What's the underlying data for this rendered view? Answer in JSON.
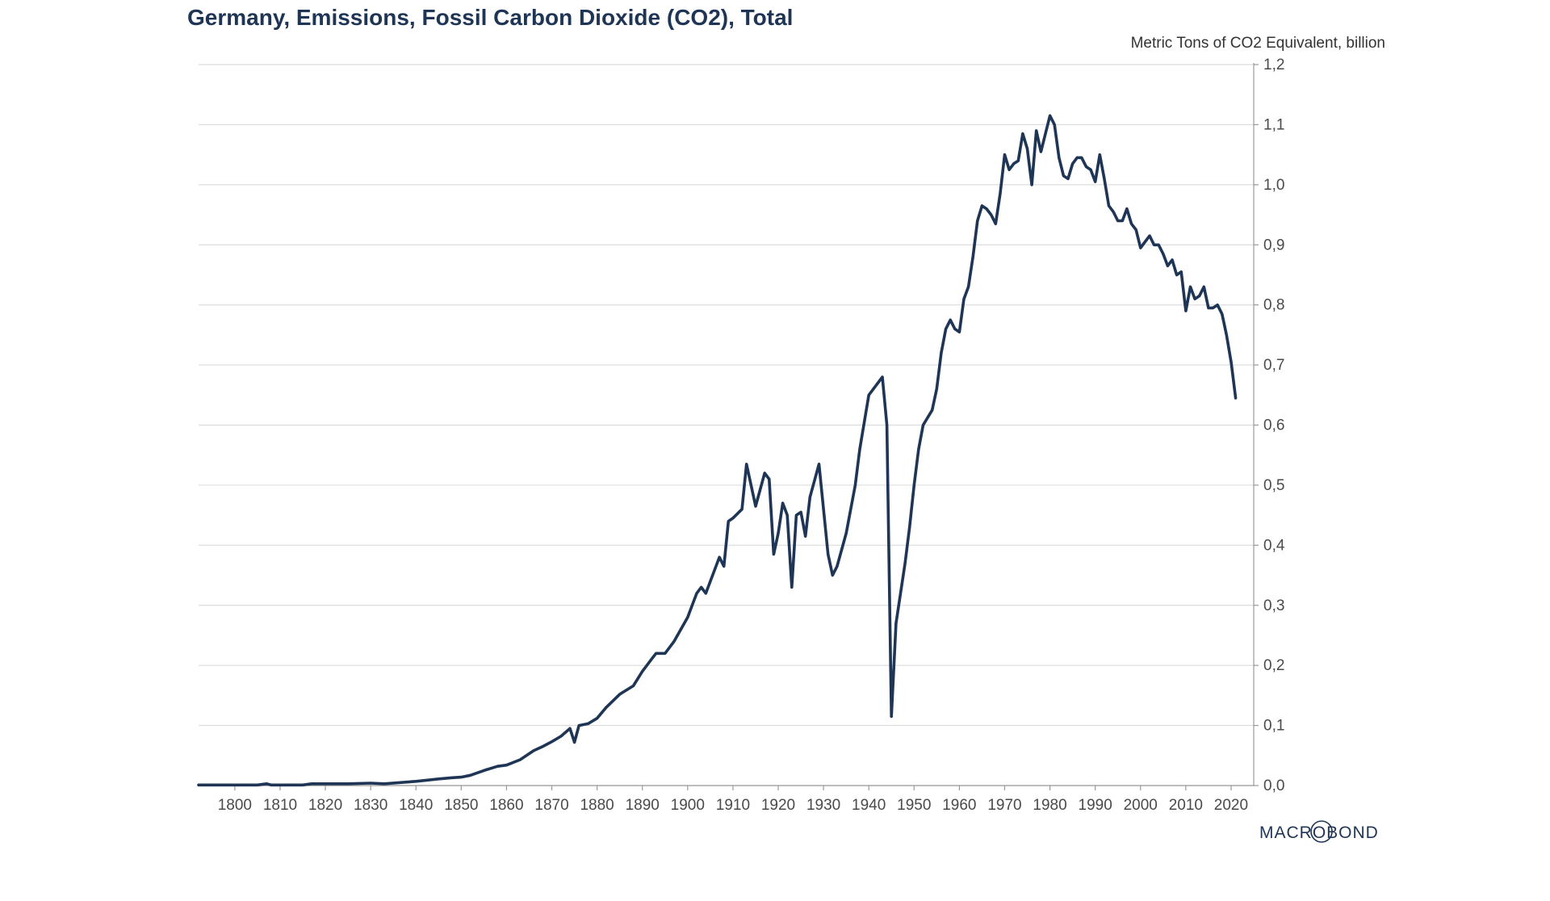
{
  "title": "Germany, Emissions, Fossil Carbon Dioxide (CO2), Total",
  "logo": {
    "text": "MACROBOND"
  },
  "colors": {
    "line": "#1f3556",
    "grid": "#dcdcdc",
    "axis": "#999999",
    "title": "#1f3556",
    "text": "#4a4a4a"
  },
  "chart_data": {
    "type": "line",
    "title": "Germany, Emissions, Fossil Carbon Dioxide (CO2), Total",
    "xlabel": "",
    "ylabel": "Metric Tons of CO2 Equivalent, billion",
    "xlim": [
      1792,
      2025
    ],
    "ylim": [
      0,
      1.2
    ],
    "y_axis_side": "right",
    "grid": "horizontal",
    "legend": "none",
    "x_ticks": [
      1800,
      1810,
      1820,
      1830,
      1840,
      1850,
      1860,
      1870,
      1880,
      1890,
      1900,
      1910,
      1920,
      1930,
      1940,
      1950,
      1960,
      1970,
      1980,
      1990,
      2000,
      2010,
      2020
    ],
    "y_ticks": [
      0,
      0.1,
      0.2,
      0.3,
      0.4,
      0.5,
      0.6,
      0.7,
      0.8,
      0.9,
      1.0,
      1.1,
      1.2
    ],
    "y_tick_labels": [
      "0,0",
      "0,1",
      "0,2",
      "0,3",
      "0,4",
      "0,5",
      "0,6",
      "0,7",
      "0,8",
      "0,9",
      "1,0",
      "1,1",
      "1,2"
    ],
    "series": [
      {
        "points": [
          [
            1792,
            0.001
          ],
          [
            1800,
            0.001
          ],
          [
            1805,
            0.001
          ],
          [
            1807,
            0.003
          ],
          [
            1808,
            0.001
          ],
          [
            1815,
            0.001
          ],
          [
            1817,
            0.003
          ],
          [
            1820,
            0.003
          ],
          [
            1825,
            0.003
          ],
          [
            1830,
            0.004
          ],
          [
            1833,
            0.003
          ],
          [
            1840,
            0.007
          ],
          [
            1845,
            0.011
          ],
          [
            1848,
            0.013
          ],
          [
            1850,
            0.014
          ],
          [
            1852,
            0.017
          ],
          [
            1855,
            0.025
          ],
          [
            1858,
            0.032
          ],
          [
            1860,
            0.034
          ],
          [
            1863,
            0.043
          ],
          [
            1866,
            0.058
          ],
          [
            1868,
            0.065
          ],
          [
            1870,
            0.073
          ],
          [
            1872,
            0.082
          ],
          [
            1874,
            0.095
          ],
          [
            1875,
            0.072
          ],
          [
            1876,
            0.1
          ],
          [
            1878,
            0.103
          ],
          [
            1880,
            0.112
          ],
          [
            1882,
            0.13
          ],
          [
            1885,
            0.152
          ],
          [
            1888,
            0.166
          ],
          [
            1890,
            0.19
          ],
          [
            1892,
            0.21
          ],
          [
            1893,
            0.22
          ],
          [
            1895,
            0.22
          ],
          [
            1897,
            0.24
          ],
          [
            1900,
            0.28
          ],
          [
            1902,
            0.32
          ],
          [
            1903,
            0.33
          ],
          [
            1904,
            0.32
          ],
          [
            1905,
            0.34
          ],
          [
            1906,
            0.36
          ],
          [
            1907,
            0.38
          ],
          [
            1908,
            0.365
          ],
          [
            1909,
            0.44
          ],
          [
            1910,
            0.445
          ],
          [
            1912,
            0.46
          ],
          [
            1913,
            0.535
          ],
          [
            1915,
            0.465
          ],
          [
            1917,
            0.52
          ],
          [
            1918,
            0.51
          ],
          [
            1919,
            0.385
          ],
          [
            1920,
            0.42
          ],
          [
            1921,
            0.47
          ],
          [
            1922,
            0.45
          ],
          [
            1923,
            0.33
          ],
          [
            1924,
            0.45
          ],
          [
            1925,
            0.455
          ],
          [
            1926,
            0.415
          ],
          [
            1927,
            0.48
          ],
          [
            1929,
            0.535
          ],
          [
            1931,
            0.385
          ],
          [
            1932,
            0.35
          ],
          [
            1933,
            0.365
          ],
          [
            1935,
            0.42
          ],
          [
            1937,
            0.5
          ],
          [
            1938,
            0.56
          ],
          [
            1940,
            0.65
          ],
          [
            1942,
            0.67
          ],
          [
            1943,
            0.68
          ],
          [
            1944,
            0.6
          ],
          [
            1945,
            0.115
          ],
          [
            1946,
            0.27
          ],
          [
            1947,
            0.32
          ],
          [
            1948,
            0.37
          ],
          [
            1949,
            0.43
          ],
          [
            1950,
            0.5
          ],
          [
            1951,
            0.56
          ],
          [
            1952,
            0.6
          ],
          [
            1954,
            0.625
          ],
          [
            1955,
            0.66
          ],
          [
            1956,
            0.72
          ],
          [
            1957,
            0.76
          ],
          [
            1958,
            0.775
          ],
          [
            1959,
            0.76
          ],
          [
            1960,
            0.755
          ],
          [
            1961,
            0.81
          ],
          [
            1962,
            0.83
          ],
          [
            1963,
            0.88
          ],
          [
            1964,
            0.94
          ],
          [
            1965,
            0.965
          ],
          [
            1966,
            0.96
          ],
          [
            1967,
            0.95
          ],
          [
            1968,
            0.935
          ],
          [
            1969,
            0.985
          ],
          [
            1970,
            1.05
          ],
          [
            1971,
            1.025
          ],
          [
            1972,
            1.035
          ],
          [
            1973,
            1.04
          ],
          [
            1974,
            1.085
          ],
          [
            1975,
            1.06
          ],
          [
            1976,
            1.0
          ],
          [
            1977,
            1.09
          ],
          [
            1978,
            1.055
          ],
          [
            1979,
            1.085
          ],
          [
            1980,
            1.115
          ],
          [
            1981,
            1.1
          ],
          [
            1982,
            1.045
          ],
          [
            1983,
            1.015
          ],
          [
            1984,
            1.01
          ],
          [
            1985,
            1.035
          ],
          [
            1986,
            1.045
          ],
          [
            1987,
            1.045
          ],
          [
            1988,
            1.03
          ],
          [
            1989,
            1.025
          ],
          [
            1990,
            1.005
          ],
          [
            1991,
            1.05
          ],
          [
            1992,
            1.01
          ],
          [
            1993,
            0.965
          ],
          [
            1994,
            0.955
          ],
          [
            1995,
            0.94
          ],
          [
            1996,
            0.94
          ],
          [
            1997,
            0.96
          ],
          [
            1998,
            0.935
          ],
          [
            1999,
            0.925
          ],
          [
            2000,
            0.895
          ],
          [
            2001,
            0.905
          ],
          [
            2002,
            0.915
          ],
          [
            2003,
            0.9
          ],
          [
            2004,
            0.9
          ],
          [
            2005,
            0.885
          ],
          [
            2006,
            0.865
          ],
          [
            2007,
            0.875
          ],
          [
            2008,
            0.85
          ],
          [
            2009,
            0.855
          ],
          [
            2010,
            0.79
          ],
          [
            2011,
            0.83
          ],
          [
            2012,
            0.81
          ],
          [
            2013,
            0.815
          ],
          [
            2014,
            0.83
          ],
          [
            2015,
            0.795
          ],
          [
            2016,
            0.795
          ],
          [
            2017,
            0.8
          ],
          [
            2018,
            0.785
          ],
          [
            2019,
            0.75
          ],
          [
            2020,
            0.705
          ],
          [
            2021,
            0.645
          ]
        ]
      }
    ]
  }
}
